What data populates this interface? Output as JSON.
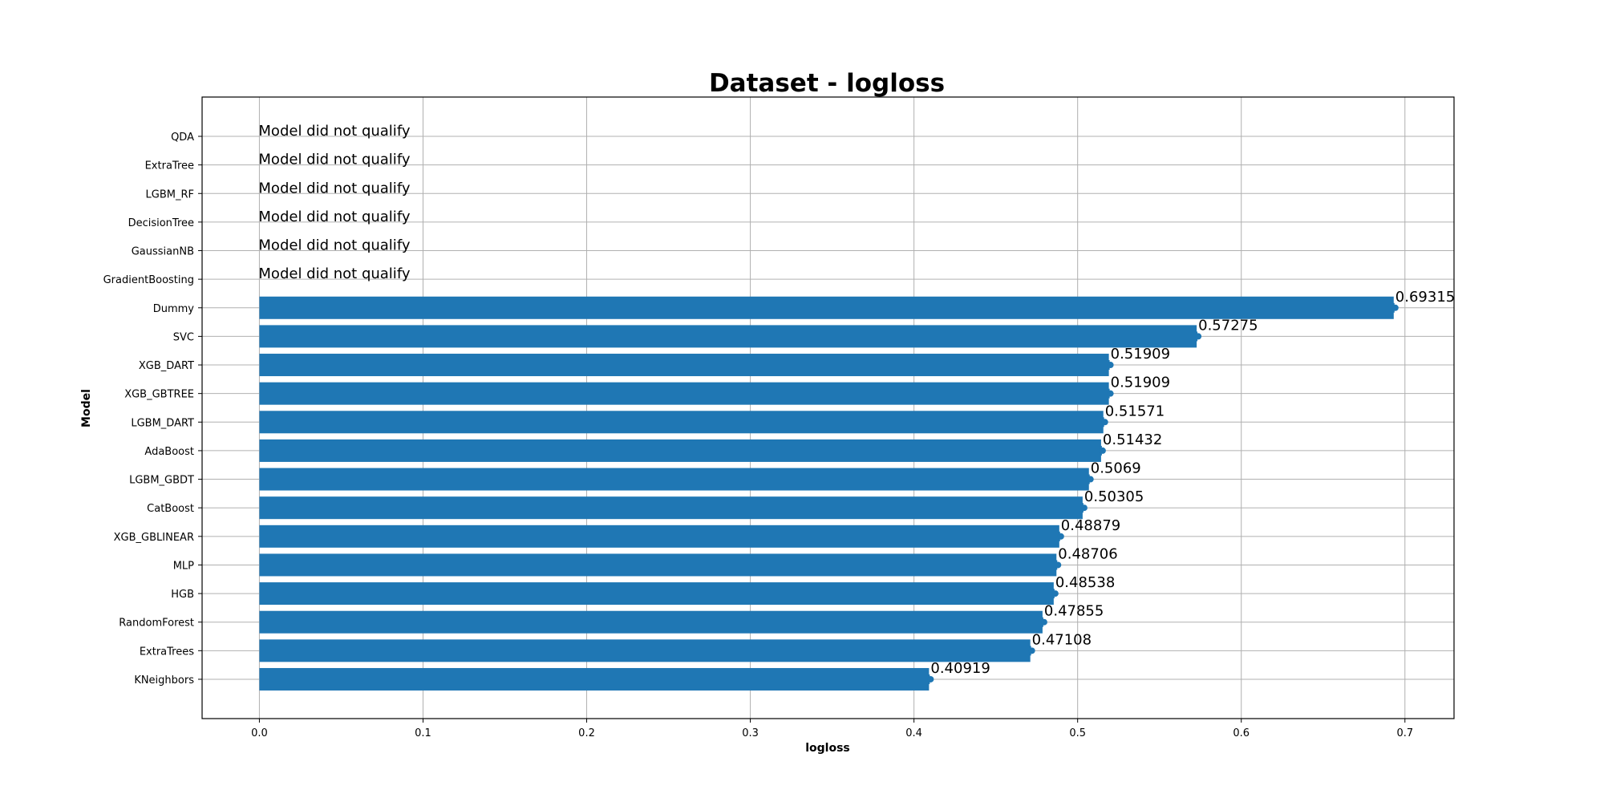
{
  "chart_data": {
    "type": "bar",
    "orientation": "horizontal",
    "title": "Dataset - logloss",
    "xlabel": "logloss",
    "ylabel": "Model",
    "xlim": [
      -0.035,
      0.73
    ],
    "xticks": [
      0.0,
      0.1,
      0.2,
      0.3,
      0.4,
      0.5,
      0.6,
      0.7
    ],
    "grid": true,
    "bar_color": "#1f77b4",
    "not_qualified_label": "Model did not qualify",
    "models": [
      {
        "name": "QDA",
        "value": null,
        "label": "Model did not qualify"
      },
      {
        "name": "ExtraTree",
        "value": null,
        "label": "Model did not qualify"
      },
      {
        "name": "LGBM_RF",
        "value": null,
        "label": "Model did not qualify"
      },
      {
        "name": "DecisionTree",
        "value": null,
        "label": "Model did not qualify"
      },
      {
        "name": "GaussianNB",
        "value": null,
        "label": "Model did not qualify"
      },
      {
        "name": "GradientBoosting",
        "value": null,
        "label": "Model did not qualify"
      },
      {
        "name": "Dummy",
        "value": 0.69315,
        "label": "0.69315"
      },
      {
        "name": "SVC",
        "value": 0.57275,
        "label": "0.57275"
      },
      {
        "name": "XGB_DART",
        "value": 0.51909,
        "label": "0.51909"
      },
      {
        "name": "XGB_GBTREE",
        "value": 0.51909,
        "label": "0.51909"
      },
      {
        "name": "LGBM_DART",
        "value": 0.51571,
        "label": "0.51571"
      },
      {
        "name": "AdaBoost",
        "value": 0.51432,
        "label": "0.51432"
      },
      {
        "name": "LGBM_GBDT",
        "value": 0.5069,
        "label": "0.5069"
      },
      {
        "name": "CatBoost",
        "value": 0.50305,
        "label": "0.50305"
      },
      {
        "name": "XGB_GBLINEAR",
        "value": 0.48879,
        "label": "0.48879"
      },
      {
        "name": "MLP",
        "value": 0.48706,
        "label": "0.48706"
      },
      {
        "name": "HGB",
        "value": 0.48538,
        "label": "0.48538"
      },
      {
        "name": "RandomForest",
        "value": 0.47855,
        "label": "0.47855"
      },
      {
        "name": "ExtraTrees",
        "value": 0.47108,
        "label": "0.47108"
      },
      {
        "name": "KNeighbors",
        "value": 0.40919,
        "label": "0.40919"
      }
    ]
  }
}
